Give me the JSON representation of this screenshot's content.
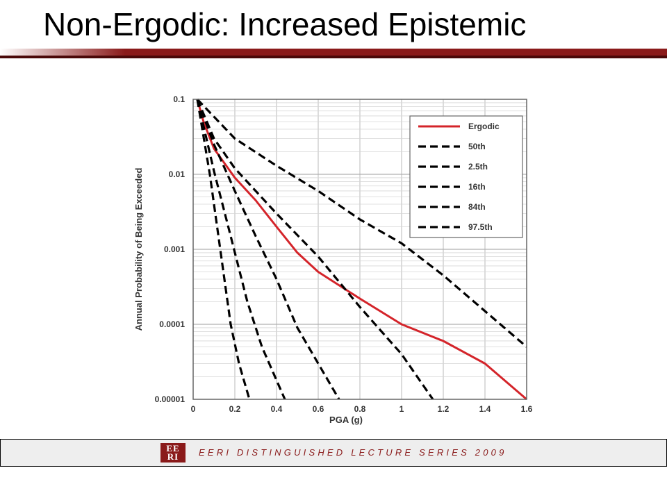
{
  "slide": {
    "title": "Non-Ergodic: Increased Epistemic"
  },
  "footer": {
    "logo_top": "EE",
    "logo_bottom": "RI",
    "text": "EERI DISTINGUISHED LECTURE SERIES 2009"
  },
  "colors": {
    "accent": "#8a1a1a",
    "ergodic": "#d4242a",
    "dashed": "#000000"
  },
  "chart_data": {
    "type": "line",
    "xlabel": "PGA (g)",
    "ylabel": "Annual Probability of Being Exceeded",
    "xlim": [
      0,
      1.6
    ],
    "ylim": [
      1e-05,
      0.1
    ],
    "yscale": "log",
    "grid": true,
    "legend_position": "top-right",
    "xticks": [
      "0",
      "0.2",
      "0.4",
      "0.6",
      "0.8",
      "1",
      "1.2",
      "1.4",
      "1.6"
    ],
    "yticks": [
      "0.1",
      "0.01",
      "0.001",
      "0.0001",
      "0.00001"
    ],
    "series": [
      {
        "name": "Ergodic",
        "style": "solid",
        "color": "#d4242a",
        "points": [
          [
            0.02,
            0.1
          ],
          [
            0.05,
            0.05
          ],
          [
            0.1,
            0.022
          ],
          [
            0.2,
            0.009
          ],
          [
            0.3,
            0.0045
          ],
          [
            0.4,
            0.002
          ],
          [
            0.5,
            0.0009
          ],
          [
            0.6,
            0.0005
          ],
          [
            0.8,
            0.00022
          ],
          [
            1.0,
            0.0001
          ],
          [
            1.2,
            6e-05
          ],
          [
            1.4,
            3e-05
          ],
          [
            1.6,
            1e-05
          ]
        ]
      },
      {
        "name": "50th",
        "style": "dashed",
        "color": "#000000",
        "points": [
          [
            0.02,
            0.1
          ],
          [
            0.1,
            0.025
          ],
          [
            0.2,
            0.006
          ],
          [
            0.3,
            0.0015
          ],
          [
            0.4,
            0.0004
          ],
          [
            0.5,
            9e-05
          ],
          [
            0.6,
            3e-05
          ],
          [
            0.7,
            1e-05
          ]
        ]
      },
      {
        "name": "2.5th",
        "style": "dashed",
        "color": "#000000",
        "points": [
          [
            0.02,
            0.1
          ],
          [
            0.08,
            0.01
          ],
          [
            0.13,
            0.001
          ],
          [
            0.18,
            0.0001
          ],
          [
            0.22,
            3e-05
          ],
          [
            0.27,
            1e-05
          ]
        ]
      },
      {
        "name": "16th",
        "style": "dashed",
        "color": "#000000",
        "points": [
          [
            0.02,
            0.1
          ],
          [
            0.1,
            0.011
          ],
          [
            0.18,
            0.0015
          ],
          [
            0.26,
            0.0002
          ],
          [
            0.33,
            5e-05
          ],
          [
            0.44,
            1e-05
          ]
        ]
      },
      {
        "name": "84th",
        "style": "dashed",
        "color": "#000000",
        "points": [
          [
            0.02,
            0.1
          ],
          [
            0.1,
            0.03
          ],
          [
            0.2,
            0.012
          ],
          [
            0.4,
            0.003
          ],
          [
            0.6,
            0.0008
          ],
          [
            0.8,
            0.00017
          ],
          [
            1.0,
            4e-05
          ],
          [
            1.15,
            1e-05
          ]
        ]
      },
      {
        "name": "97.5th",
        "style": "dashed",
        "color": "#000000",
        "points": [
          [
            0.02,
            0.1
          ],
          [
            0.2,
            0.03
          ],
          [
            0.4,
            0.013
          ],
          [
            0.6,
            0.006
          ],
          [
            0.8,
            0.0025
          ],
          [
            1.0,
            0.0012
          ],
          [
            1.2,
            0.00045
          ],
          [
            1.4,
            0.00015
          ],
          [
            1.6,
            5e-05
          ]
        ]
      }
    ]
  }
}
